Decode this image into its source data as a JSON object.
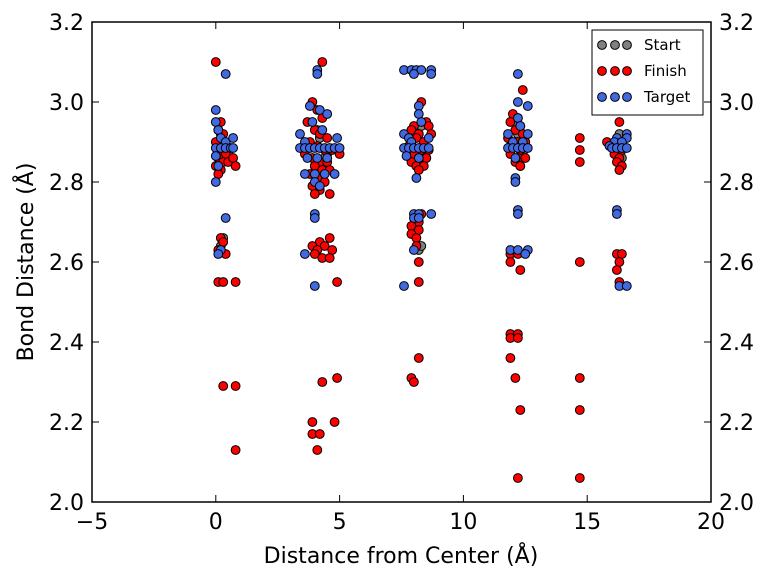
{
  "chart_data": {
    "type": "scatter",
    "xlabel": "Distance from Center (Å)",
    "ylabel": "Bond Distance (Å)",
    "xlim": [
      -5,
      20
    ],
    "ylim": [
      2.0,
      3.2
    ],
    "xticks": [
      "−5",
      "0",
      "5",
      "10",
      "15",
      "20"
    ],
    "yticks": [
      "2.0",
      "2.2",
      "2.4",
      "2.6",
      "2.8",
      "3.0",
      "3.2"
    ],
    "legend_position": "top-right",
    "grid": false,
    "series": [
      {
        "name": "Start",
        "color": "#808080",
        "points": [
          [
            0.1,
            2.885
          ],
          [
            0.3,
            2.9
          ],
          [
            0.5,
            2.87
          ],
          [
            0.2,
            2.92
          ],
          [
            0.4,
            2.86
          ],
          [
            0.3,
            2.66
          ],
          [
            0.2,
            2.64
          ],
          [
            3.9,
            2.89
          ],
          [
            4.2,
            2.91
          ],
          [
            4.5,
            2.87
          ],
          [
            4.1,
            2.93
          ],
          [
            4.4,
            2.86
          ],
          [
            4.0,
            2.84
          ],
          [
            7.9,
            2.89
          ],
          [
            8.2,
            2.92
          ],
          [
            8.5,
            2.86
          ],
          [
            8.1,
            2.84
          ],
          [
            8.3,
            2.94
          ],
          [
            8.2,
            2.63
          ],
          [
            8.3,
            2.64
          ],
          [
            11.9,
            2.89
          ],
          [
            12.2,
            2.92
          ],
          [
            12.4,
            2.87
          ],
          [
            12.1,
            2.95
          ],
          [
            12.3,
            2.84
          ],
          [
            16.1,
            2.89
          ],
          [
            16.3,
            2.92
          ],
          [
            16.4,
            2.86
          ],
          [
            16.2,
            2.87
          ]
        ]
      },
      {
        "name": "Finish",
        "color": "#ff0000",
        "points": [
          [
            0.0,
            3.1
          ],
          [
            0.2,
            2.95
          ],
          [
            0.1,
            2.93
          ],
          [
            0.3,
            2.92
          ],
          [
            0.0,
            2.9
          ],
          [
            0.2,
            2.88
          ],
          [
            0.4,
            2.87
          ],
          [
            0.1,
            2.86
          ],
          [
            0.3,
            2.85
          ],
          [
            0.5,
            2.85
          ],
          [
            0.0,
            2.84
          ],
          [
            0.2,
            2.83
          ],
          [
            0.1,
            2.82
          ],
          [
            0.7,
            2.86
          ],
          [
            0.8,
            2.84
          ],
          [
            0.2,
            2.66
          ],
          [
            0.3,
            2.65
          ],
          [
            0.1,
            2.63
          ],
          [
            0.4,
            2.62
          ],
          [
            0.1,
            2.55
          ],
          [
            0.3,
            2.55
          ],
          [
            0.8,
            2.55
          ],
          [
            0.3,
            2.29
          ],
          [
            0.8,
            2.29
          ],
          [
            0.8,
            2.13
          ],
          [
            4.3,
            3.1
          ],
          [
            3.9,
            3.0
          ],
          [
            4.1,
            2.98
          ],
          [
            4.3,
            2.96
          ],
          [
            3.7,
            2.95
          ],
          [
            4.0,
            2.93
          ],
          [
            4.2,
            2.92
          ],
          [
            4.5,
            2.91
          ],
          [
            3.8,
            2.9
          ],
          [
            4.1,
            2.89
          ],
          [
            4.4,
            2.88
          ],
          [
            4.7,
            2.88
          ],
          [
            5.0,
            2.87
          ],
          [
            3.6,
            2.87
          ],
          [
            3.9,
            2.86
          ],
          [
            4.2,
            2.85
          ],
          [
            4.5,
            2.85
          ],
          [
            4.0,
            2.84
          ],
          [
            4.3,
            2.83
          ],
          [
            4.6,
            2.83
          ],
          [
            3.8,
            2.82
          ],
          [
            4.1,
            2.81
          ],
          [
            4.4,
            2.8
          ],
          [
            3.9,
            2.79
          ],
          [
            4.2,
            2.78
          ],
          [
            4.6,
            2.77
          ],
          [
            4.0,
            2.77
          ],
          [
            4.6,
            2.66
          ],
          [
            4.2,
            2.65
          ],
          [
            3.9,
            2.64
          ],
          [
            4.4,
            2.64
          ],
          [
            4.1,
            2.63
          ],
          [
            4.7,
            2.63
          ],
          [
            4.0,
            2.62
          ],
          [
            4.3,
            2.61
          ],
          [
            4.6,
            2.61
          ],
          [
            4.9,
            2.55
          ],
          [
            4.3,
            2.3
          ],
          [
            4.9,
            2.31
          ],
          [
            3.9,
            2.2
          ],
          [
            4.8,
            2.2
          ],
          [
            3.9,
            2.17
          ],
          [
            4.2,
            2.17
          ],
          [
            4.1,
            2.13
          ],
          [
            8.3,
            3.0
          ],
          [
            8.0,
            2.94
          ],
          [
            8.5,
            2.95
          ],
          [
            8.6,
            2.94
          ],
          [
            7.9,
            2.93
          ],
          [
            8.2,
            2.92
          ],
          [
            8.7,
            2.92
          ],
          [
            8.1,
            2.91
          ],
          [
            8.4,
            2.9
          ],
          [
            7.8,
            2.89
          ],
          [
            8.3,
            2.88
          ],
          [
            8.6,
            2.88
          ],
          [
            8.0,
            2.87
          ],
          [
            8.2,
            2.86
          ],
          [
            8.5,
            2.86
          ],
          [
            7.9,
            2.85
          ],
          [
            8.1,
            2.84
          ],
          [
            8.4,
            2.84
          ],
          [
            8.2,
            2.83
          ],
          [
            8.3,
            2.72
          ],
          [
            8.2,
            2.7
          ],
          [
            7.9,
            2.69
          ],
          [
            8.2,
            2.68
          ],
          [
            7.9,
            2.67
          ],
          [
            8.1,
            2.66
          ],
          [
            8.1,
            2.64
          ],
          [
            8.2,
            2.6
          ],
          [
            8.2,
            2.55
          ],
          [
            8.2,
            2.36
          ],
          [
            7.9,
            2.31
          ],
          [
            8.0,
            2.3
          ],
          [
            12.4,
            3.03
          ],
          [
            12.0,
            2.97
          ],
          [
            12.2,
            2.96
          ],
          [
            11.9,
            2.95
          ],
          [
            12.3,
            2.94
          ],
          [
            12.1,
            2.93
          ],
          [
            12.4,
            2.92
          ],
          [
            11.8,
            2.91
          ],
          [
            12.2,
            2.9
          ],
          [
            12.5,
            2.9
          ],
          [
            12.0,
            2.89
          ],
          [
            12.3,
            2.88
          ],
          [
            11.9,
            2.87
          ],
          [
            12.2,
            2.86
          ],
          [
            12.5,
            2.86
          ],
          [
            12.1,
            2.85
          ],
          [
            12.3,
            2.84
          ],
          [
            11.9,
            2.62
          ],
          [
            12.2,
            2.62
          ],
          [
            11.9,
            2.6
          ],
          [
            12.3,
            2.58
          ],
          [
            11.9,
            2.42
          ],
          [
            12.2,
            2.42
          ],
          [
            11.9,
            2.41
          ],
          [
            12.2,
            2.41
          ],
          [
            11.9,
            2.36
          ],
          [
            12.1,
            2.31
          ],
          [
            12.3,
            2.23
          ],
          [
            12.2,
            2.06
          ],
          [
            14.7,
            2.91
          ],
          [
            14.7,
            2.88
          ],
          [
            14.7,
            2.85
          ],
          [
            14.7,
            2.6
          ],
          [
            14.7,
            2.31
          ],
          [
            14.7,
            2.23
          ],
          [
            14.7,
            2.06
          ],
          [
            15.8,
            2.9
          ],
          [
            16.2,
            2.89
          ],
          [
            16.4,
            2.88
          ],
          [
            16.1,
            2.87
          ],
          [
            16.3,
            2.86
          ],
          [
            16.2,
            2.85
          ],
          [
            16.4,
            2.84
          ],
          [
            16.3,
            2.83
          ],
          [
            16.3,
            2.95
          ],
          [
            16.2,
            2.62
          ],
          [
            16.4,
            2.62
          ],
          [
            16.3,
            2.6
          ],
          [
            16.2,
            2.58
          ],
          [
            16.3,
            2.55
          ]
        ]
      },
      {
        "name": "Target",
        "color": "#4169e1",
        "points": [
          [
            0.4,
            3.07
          ],
          [
            0.0,
            2.98
          ],
          [
            0.0,
            2.95
          ],
          [
            0.1,
            2.93
          ],
          [
            0.2,
            2.91
          ],
          [
            0.4,
            2.9
          ],
          [
            0.7,
            2.91
          ],
          [
            0.0,
            2.885
          ],
          [
            0.2,
            2.885
          ],
          [
            0.4,
            2.885
          ],
          [
            0.6,
            2.885
          ],
          [
            0.7,
            2.885
          ],
          [
            0.0,
            2.865
          ],
          [
            0.1,
            2.84
          ],
          [
            0.0,
            2.8
          ],
          [
            0.4,
            2.71
          ],
          [
            0.2,
            2.63
          ],
          [
            0.1,
            2.62
          ],
          [
            4.1,
            3.08
          ],
          [
            4.1,
            3.07
          ],
          [
            3.8,
            2.99
          ],
          [
            4.2,
            2.98
          ],
          [
            4.5,
            2.97
          ],
          [
            3.9,
            2.95
          ],
          [
            4.3,
            2.93
          ],
          [
            3.4,
            2.92
          ],
          [
            4.9,
            2.91
          ],
          [
            3.6,
            2.9
          ],
          [
            3.4,
            2.885
          ],
          [
            3.6,
            2.885
          ],
          [
            3.8,
            2.885
          ],
          [
            4.0,
            2.885
          ],
          [
            4.2,
            2.885
          ],
          [
            4.4,
            2.885
          ],
          [
            4.6,
            2.885
          ],
          [
            4.8,
            2.885
          ],
          [
            5.0,
            2.885
          ],
          [
            3.7,
            2.86
          ],
          [
            4.1,
            2.86
          ],
          [
            4.5,
            2.86
          ],
          [
            3.6,
            2.82
          ],
          [
            4.0,
            2.82
          ],
          [
            4.4,
            2.82
          ],
          [
            4.8,
            2.82
          ],
          [
            4.0,
            2.8
          ],
          [
            4.2,
            2.79
          ],
          [
            4.0,
            2.72
          ],
          [
            4.0,
            2.71
          ],
          [
            3.6,
            2.62
          ],
          [
            4.0,
            2.54
          ],
          [
            7.6,
            3.08
          ],
          [
            7.9,
            3.08
          ],
          [
            8.1,
            3.08
          ],
          [
            8.3,
            3.08
          ],
          [
            8.0,
            3.07
          ],
          [
            8.7,
            3.08
          ],
          [
            8.7,
            3.07
          ],
          [
            8.2,
            2.99
          ],
          [
            8.2,
            2.97
          ],
          [
            8.3,
            2.95
          ],
          [
            7.6,
            2.92
          ],
          [
            7.8,
            2.91
          ],
          [
            8.6,
            2.91
          ],
          [
            7.9,
            2.9
          ],
          [
            7.6,
            2.885
          ],
          [
            7.8,
            2.885
          ],
          [
            8.0,
            2.885
          ],
          [
            8.2,
            2.885
          ],
          [
            8.4,
            2.885
          ],
          [
            8.6,
            2.885
          ],
          [
            7.7,
            2.865
          ],
          [
            8.2,
            2.86
          ],
          [
            8.1,
            2.81
          ],
          [
            8.0,
            2.72
          ],
          [
            8.2,
            2.72
          ],
          [
            8.7,
            2.72
          ],
          [
            8.0,
            2.71
          ],
          [
            8.2,
            2.71
          ],
          [
            8.0,
            2.63
          ],
          [
            7.6,
            2.54
          ],
          [
            12.2,
            3.07
          ],
          [
            12.2,
            3.0
          ],
          [
            12.6,
            2.99
          ],
          [
            12.2,
            2.96
          ],
          [
            12.3,
            2.94
          ],
          [
            11.8,
            2.92
          ],
          [
            12.6,
            2.92
          ],
          [
            12.0,
            2.9
          ],
          [
            12.4,
            2.9
          ],
          [
            11.8,
            2.885
          ],
          [
            12.0,
            2.885
          ],
          [
            12.2,
            2.885
          ],
          [
            12.4,
            2.885
          ],
          [
            12.6,
            2.885
          ],
          [
            12.1,
            2.86
          ],
          [
            12.1,
            2.81
          ],
          [
            12.1,
            2.8
          ],
          [
            12.2,
            2.73
          ],
          [
            12.2,
            2.72
          ],
          [
            11.9,
            2.63
          ],
          [
            12.2,
            2.63
          ],
          [
            12.6,
            2.63
          ],
          [
            12.5,
            2.62
          ],
          [
            16.6,
            2.92
          ],
          [
            16.2,
            2.91
          ],
          [
            16.6,
            2.91
          ],
          [
            16.1,
            2.9
          ],
          [
            16.4,
            2.9
          ],
          [
            15.9,
            2.89
          ],
          [
            16.0,
            2.885
          ],
          [
            16.2,
            2.885
          ],
          [
            16.4,
            2.885
          ],
          [
            16.6,
            2.885
          ],
          [
            16.2,
            2.73
          ],
          [
            16.2,
            2.72
          ],
          [
            16.3,
            2.54
          ],
          [
            16.6,
            2.54
          ]
        ]
      }
    ]
  }
}
